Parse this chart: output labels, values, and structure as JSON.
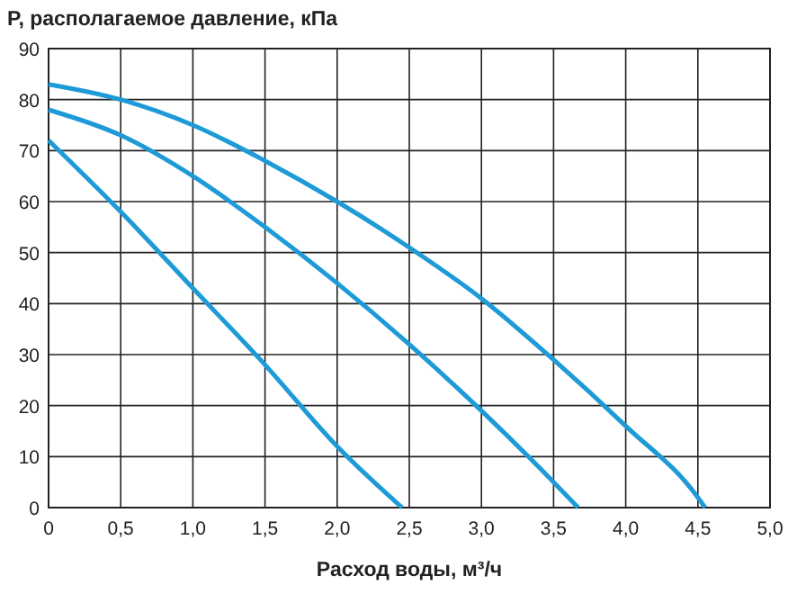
{
  "chart_data": {
    "type": "line",
    "ylabel": "P, располагаемое давление, кПа",
    "xlabel": "Расход воды, м³/ч",
    "xlim": [
      0,
      5
    ],
    "ylim": [
      0,
      90
    ],
    "xticks": [
      0,
      {
        "value": 0.5,
        "label": "0,5"
      },
      {
        "value": 1,
        "label": "1,0"
      },
      {
        "value": 1.5,
        "label": "1,5"
      },
      {
        "value": 2,
        "label": "2,0"
      },
      {
        "value": 2.5,
        "label": "2,5"
      },
      {
        "value": 3,
        "label": "3,0"
      },
      {
        "value": 3.5,
        "label": "3,5"
      },
      {
        "value": 4,
        "label": "4,0"
      },
      {
        "value": 4.5,
        "label": "4,5"
      },
      {
        "value": 5,
        "label": "5,0"
      }
    ],
    "yticks": [
      0,
      10,
      20,
      30,
      40,
      50,
      60,
      70,
      80,
      90
    ],
    "grid": true,
    "marker": "none",
    "line_style": "solid",
    "series": [
      {
        "color": "#1e9bd7",
        "x": [
          0,
          0.5,
          1,
          1.5,
          2,
          2.45
        ],
        "values": [
          72,
          58,
          43,
          28,
          12,
          0
        ]
      },
      {
        "color": "#1e9bd7",
        "x": [
          0,
          0.5,
          1,
          1.5,
          2,
          2.5,
          3,
          3.5,
          3.67
        ],
        "values": [
          78,
          73,
          65,
          55,
          44,
          32,
          19,
          5,
          0
        ]
      },
      {
        "color": "#1e9bd7",
        "x": [
          0,
          0.5,
          1,
          1.5,
          2,
          2.5,
          3,
          3.5,
          4,
          4.5,
          4.55
        ],
        "values": [
          83,
          80,
          75,
          68,
          60,
          51,
          41,
          29,
          16,
          2,
          0
        ]
      }
    ]
  }
}
